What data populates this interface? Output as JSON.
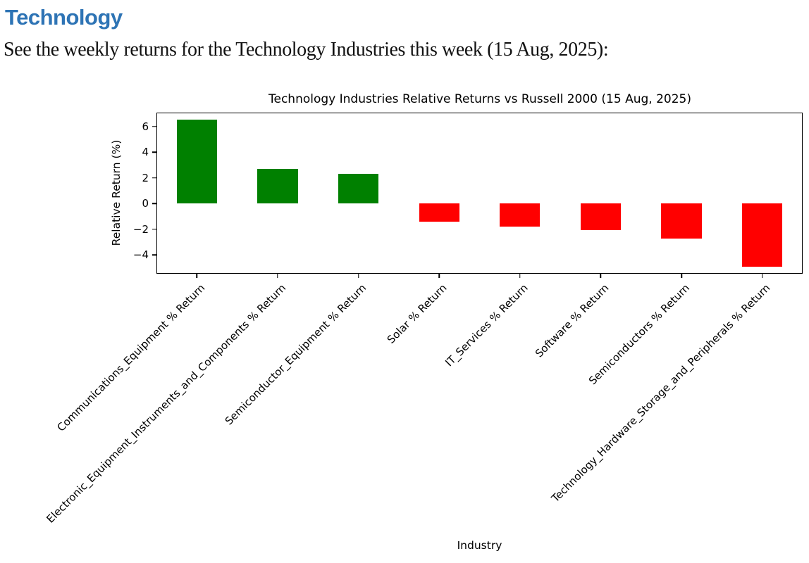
{
  "page": {
    "heading": "Technology",
    "subtitle": "See the weekly returns for the Technology Industries this week (15 Aug, 2025):"
  },
  "colors": {
    "heading_blue": "#2E74B5",
    "positive_bar": "#008000",
    "negative_bar": "#FF0000",
    "axis_black": "#000000"
  },
  "chart_data": {
    "type": "bar",
    "title": "Technology Industries Relative Returns vs Russell 2000 (15 Aug, 2025)",
    "xlabel": "Industry",
    "ylabel": "Relative Return (%)",
    "categories": [
      "Communications_Equipment % Return",
      "Electronic_Equipment_Instruments_and_Components % Return",
      "Semiconductor_Equipment % Return",
      "Solar % Return",
      "IT_Services % Return",
      "Software % Return",
      "Semiconductors % Return",
      "Technology_Hardware_Storage_and_Peripherals % Return"
    ],
    "values": [
      6.5,
      2.7,
      2.3,
      -1.4,
      -1.8,
      -2.1,
      -2.75,
      -4.9
    ],
    "positive_color": "#008000",
    "negative_color": "#FF0000",
    "ylim": [
      -5.47,
      7.07
    ],
    "yticks": [
      6,
      4,
      2,
      0,
      -2,
      -4
    ],
    "bar_width_fraction": 0.5,
    "xtick_rotation_deg": 45,
    "grid": false,
    "legend": null
  }
}
